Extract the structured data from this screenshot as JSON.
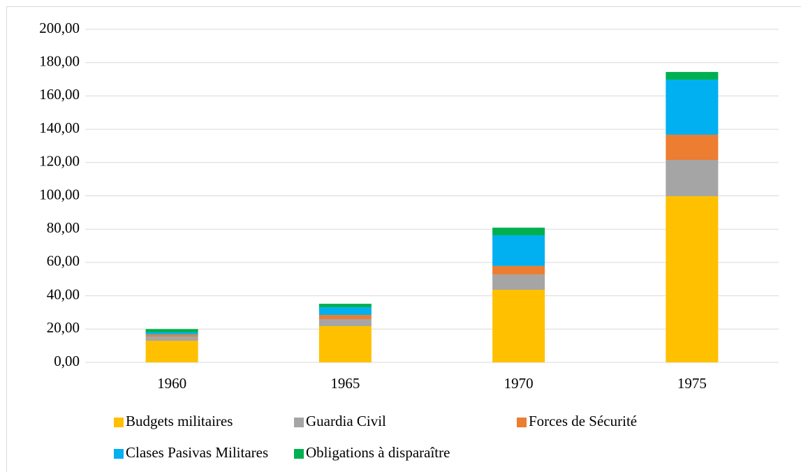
{
  "chart_data": {
    "type": "stacked_bar",
    "categories": [
      "1960",
      "1965",
      "1970",
      "1975"
    ],
    "series": [
      {
        "name": "Budgets militaires",
        "color": "#ffc000",
        "values": [
          13,
          21.8,
          43.6,
          99.8
        ]
      },
      {
        "name": "Guardia Civil",
        "color": "#a5a5a5",
        "values": [
          2.5,
          4.2,
          9.2,
          21.8
        ]
      },
      {
        "name": "Forces de Sécurité",
        "color": "#ed7d31",
        "values": [
          1.2,
          2.5,
          5.1,
          15.1
        ]
      },
      {
        "name": "Clases Pasivas Militares",
        "color": "#00b0f0",
        "values": [
          1.3,
          4.6,
          18.4,
          33.1
        ]
      },
      {
        "name": "Obligations à disparaître",
        "color": "#00b050",
        "values": [
          2,
          2.1,
          4.6,
          4.6
        ]
      }
    ],
    "ylim": [
      0,
      200
    ],
    "yticks": [
      {
        "value": 0,
        "label": "0,00"
      },
      {
        "value": 20,
        "label": "20,00"
      },
      {
        "value": 40,
        "label": "40,00"
      },
      {
        "value": 60,
        "label": "60,00"
      },
      {
        "value": 80,
        "label": "80,00"
      },
      {
        "value": 100,
        "label": "100,00"
      },
      {
        "value": 120,
        "label": "120,00"
      },
      {
        "value": 140,
        "label": "140,00"
      },
      {
        "value": 160,
        "label": "160,00"
      },
      {
        "value": 180,
        "label": "180,00"
      },
      {
        "value": 200,
        "label": "200,00"
      }
    ],
    "grid": true,
    "legend": "bottom"
  }
}
